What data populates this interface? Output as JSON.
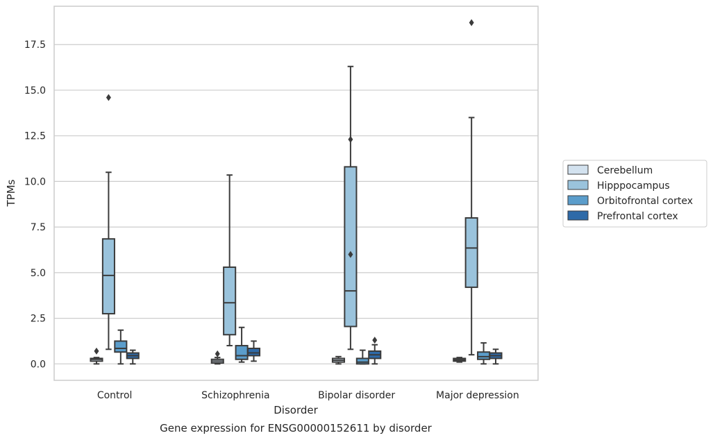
{
  "caption": "Gene expression for ENSG00000152611 by disorder",
  "chart_data": {
    "type": "box",
    "xlabel": "Disorder",
    "ylabel": "TPMs",
    "ylim": [
      -0.9,
      19.6
    ],
    "yticks": [
      0.0,
      2.5,
      5.0,
      7.5,
      10.0,
      12.5,
      15.0,
      17.5
    ],
    "ytick_labels": [
      "0.0",
      "2.5",
      "5.0",
      "7.5",
      "10.0",
      "12.5",
      "15.0",
      "17.5"
    ],
    "grid": "horizontal",
    "legend_position": "right",
    "categories": [
      "Control",
      "Schizophrenia",
      "Bipolar disorder",
      "Major depression"
    ],
    "series": [
      {
        "name": "Cerebellum",
        "color": "#d3e2ef",
        "boxes": [
          {
            "whislo": 0.0,
            "q1": 0.15,
            "med": 0.25,
            "q3": 0.3,
            "whishi": 0.35,
            "fliers": [
              0.7
            ]
          },
          {
            "whislo": 0.0,
            "q1": 0.05,
            "med": 0.15,
            "q3": 0.25,
            "whishi": 0.35,
            "fliers": [
              0.55
            ]
          },
          {
            "whislo": 0.0,
            "q1": 0.1,
            "med": 0.2,
            "q3": 0.3,
            "whishi": 0.4,
            "fliers": []
          },
          {
            "whislo": 0.1,
            "q1": 0.15,
            "med": 0.22,
            "q3": 0.3,
            "whishi": 0.35,
            "fliers": []
          }
        ]
      },
      {
        "name": "Hipppocampus",
        "color": "#9ac3dc",
        "boxes": [
          {
            "whislo": 0.8,
            "q1": 2.75,
            "med": 4.85,
            "q3": 6.85,
            "whishi": 10.5,
            "fliers": [
              14.6
            ]
          },
          {
            "whislo": 1.0,
            "q1": 1.6,
            "med": 3.35,
            "q3": 5.3,
            "whishi": 10.35,
            "fliers": []
          },
          {
            "whislo": 0.8,
            "q1": 2.05,
            "med": 4.0,
            "q3": 10.8,
            "whishi": 16.3,
            "fliers": [
              12.3,
              6.0
            ]
          },
          {
            "whislo": 0.5,
            "q1": 4.2,
            "med": 6.35,
            "q3": 8.0,
            "whishi": 13.5,
            "fliers": [
              18.7
            ]
          }
        ]
      },
      {
        "name": "Orbitofrontal cortex",
        "color": "#5b9dcb",
        "boxes": [
          {
            "whislo": 0.0,
            "q1": 0.65,
            "med": 0.85,
            "q3": 1.25,
            "whishi": 1.85,
            "fliers": []
          },
          {
            "whislo": 0.1,
            "q1": 0.25,
            "med": 0.45,
            "q3": 1.0,
            "whishi": 2.0,
            "fliers": []
          },
          {
            "whislo": 0.0,
            "q1": 0.0,
            "med": 0.1,
            "q3": 0.3,
            "whishi": 0.75,
            "fliers": []
          },
          {
            "whislo": 0.0,
            "q1": 0.25,
            "med": 0.4,
            "q3": 0.65,
            "whishi": 1.15,
            "fliers": []
          }
        ]
      },
      {
        "name": "Prefrontal cortex",
        "color": "#2e6aa8",
        "boxes": [
          {
            "whislo": 0.0,
            "q1": 0.3,
            "med": 0.45,
            "q3": 0.6,
            "whishi": 0.75,
            "fliers": []
          },
          {
            "whislo": 0.15,
            "q1": 0.45,
            "med": 0.6,
            "q3": 0.85,
            "whishi": 1.25,
            "fliers": []
          },
          {
            "whislo": 0.0,
            "q1": 0.3,
            "med": 0.5,
            "q3": 0.7,
            "whishi": 1.05,
            "fliers": [
              1.3
            ]
          },
          {
            "whislo": 0.0,
            "q1": 0.3,
            "med": 0.45,
            "q3": 0.6,
            "whishi": 0.8,
            "fliers": []
          }
        ]
      }
    ]
  }
}
